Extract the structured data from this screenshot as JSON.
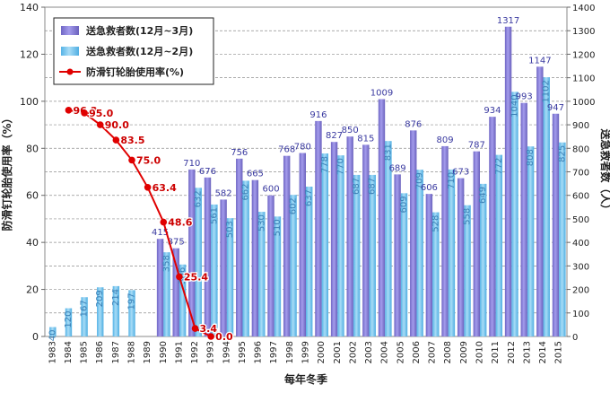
{
  "chart_data": {
    "type": "bar",
    "categories": [
      "1983",
      "1984",
      "1985",
      "1986",
      "1987",
      "1988",
      "1989",
      "1990",
      "1991",
      "1992",
      "1993",
      "1994",
      "1995",
      "1996",
      "1997",
      "1998",
      "1999",
      "2000",
      "2001",
      "2002",
      "2003",
      "2004",
      "2005",
      "2006",
      "2007",
      "2008",
      "2009",
      "2010",
      "2011",
      "2012",
      "2013",
      "2014",
      "2015"
    ],
    "series": [
      {
        "name": "送急救者数(12月~3月)",
        "axis": "right",
        "color": "#8f86d6",
        "values": [
          null,
          null,
          null,
          null,
          null,
          null,
          null,
          415,
          375,
          710,
          676,
          582,
          756,
          665,
          600,
          768,
          780,
          916,
          827,
          850,
          815,
          1009,
          689,
          876,
          606,
          809,
          673,
          787,
          934,
          1317,
          993,
          1147,
          947
        ],
        "labels": [
          null,
          null,
          null,
          null,
          null,
          null,
          null,
          "415",
          "375",
          "710",
          "676",
          "582",
          "756",
          "665",
          "600",
          "768",
          "780",
          "916",
          "827",
          "850",
          "815",
          "1009",
          "689",
          "876",
          "606",
          "809",
          "673",
          "787",
          "934",
          "1317",
          "993",
          "1147",
          "947"
        ]
      },
      {
        "name": "送急救者数(12月~2月)",
        "axis": "right",
        "color": "#7ec8ee",
        "values": [
          40,
          120,
          167,
          209,
          214,
          197,
          null,
          358,
          306,
          632,
          561,
          503,
          662,
          530,
          510,
          602,
          637,
          778,
          770,
          687,
          687,
          831,
          609,
          709,
          528,
          710,
          558,
          649,
          772,
          1040,
          808,
          1102,
          825
        ],
        "labels": [
          "40",
          "120",
          "167",
          "209",
          "214",
          "197",
          null,
          "358",
          "306",
          "632",
          "561",
          "503",
          "662",
          "530",
          "510",
          "602",
          "637",
          "778",
          "770",
          "687",
          "687",
          "831",
          "609",
          "709",
          "528",
          "710",
          "558",
          "649",
          "772",
          "1040",
          "808",
          "1102",
          "825"
        ]
      },
      {
        "name": "防滑钉轮胎使用率(%)",
        "axis": "left",
        "type": "line",
        "color": "#e00000",
        "points": [
          {
            "x": "1984",
            "y": 96.2,
            "label": "96.2"
          },
          {
            "x": "1985",
            "y": 95.0,
            "label": "95.0"
          },
          {
            "x": "1986",
            "y": 90.0,
            "label": "90.0"
          },
          {
            "x": "1987",
            "y": 83.5,
            "label": "83.5"
          },
          {
            "x": "1988",
            "y": 75.0,
            "label": "75.0"
          },
          {
            "x": "1989",
            "y": 63.4,
            "label": "63.4"
          },
          {
            "x": "1990",
            "y": 48.6,
            "label": "48.6"
          },
          {
            "x": "1991",
            "y": 25.4,
            "label": "25.4"
          },
          {
            "x": "1992",
            "y": 3.4,
            "label": "3.4"
          },
          {
            "x": "1993",
            "y": 0.0,
            "label": "0.0"
          }
        ]
      }
    ],
    "xlabel": "每年冬季",
    "ylabel_left": "防滑钉轮胎使用率（%）",
    "ylabel_right": "送急救者数（人）",
    "ylim_left": [
      0,
      140
    ],
    "ylim_right": [
      0,
      1400
    ],
    "yticks_left": [
      "0",
      "20",
      "40",
      "60",
      "80",
      "100",
      "120",
      "140"
    ],
    "yticks_right": [
      "0",
      "100",
      "200",
      "300",
      "400",
      "500",
      "600",
      "700",
      "800",
      "900",
      "1000",
      "1100",
      "1200",
      "1300",
      "1400"
    ],
    "grid": true,
    "legend_position": "top-left",
    "legend": [
      {
        "label": "送急救者数(12月~3月)",
        "kind": "bar",
        "color": "#8f86d6"
      },
      {
        "label": "送急救者数(12月~2月)",
        "kind": "bar",
        "color": "#7ec8ee"
      },
      {
        "label": "防滑钉轮胎使用率(%)",
        "kind": "line",
        "color": "#e00000"
      }
    ]
  }
}
